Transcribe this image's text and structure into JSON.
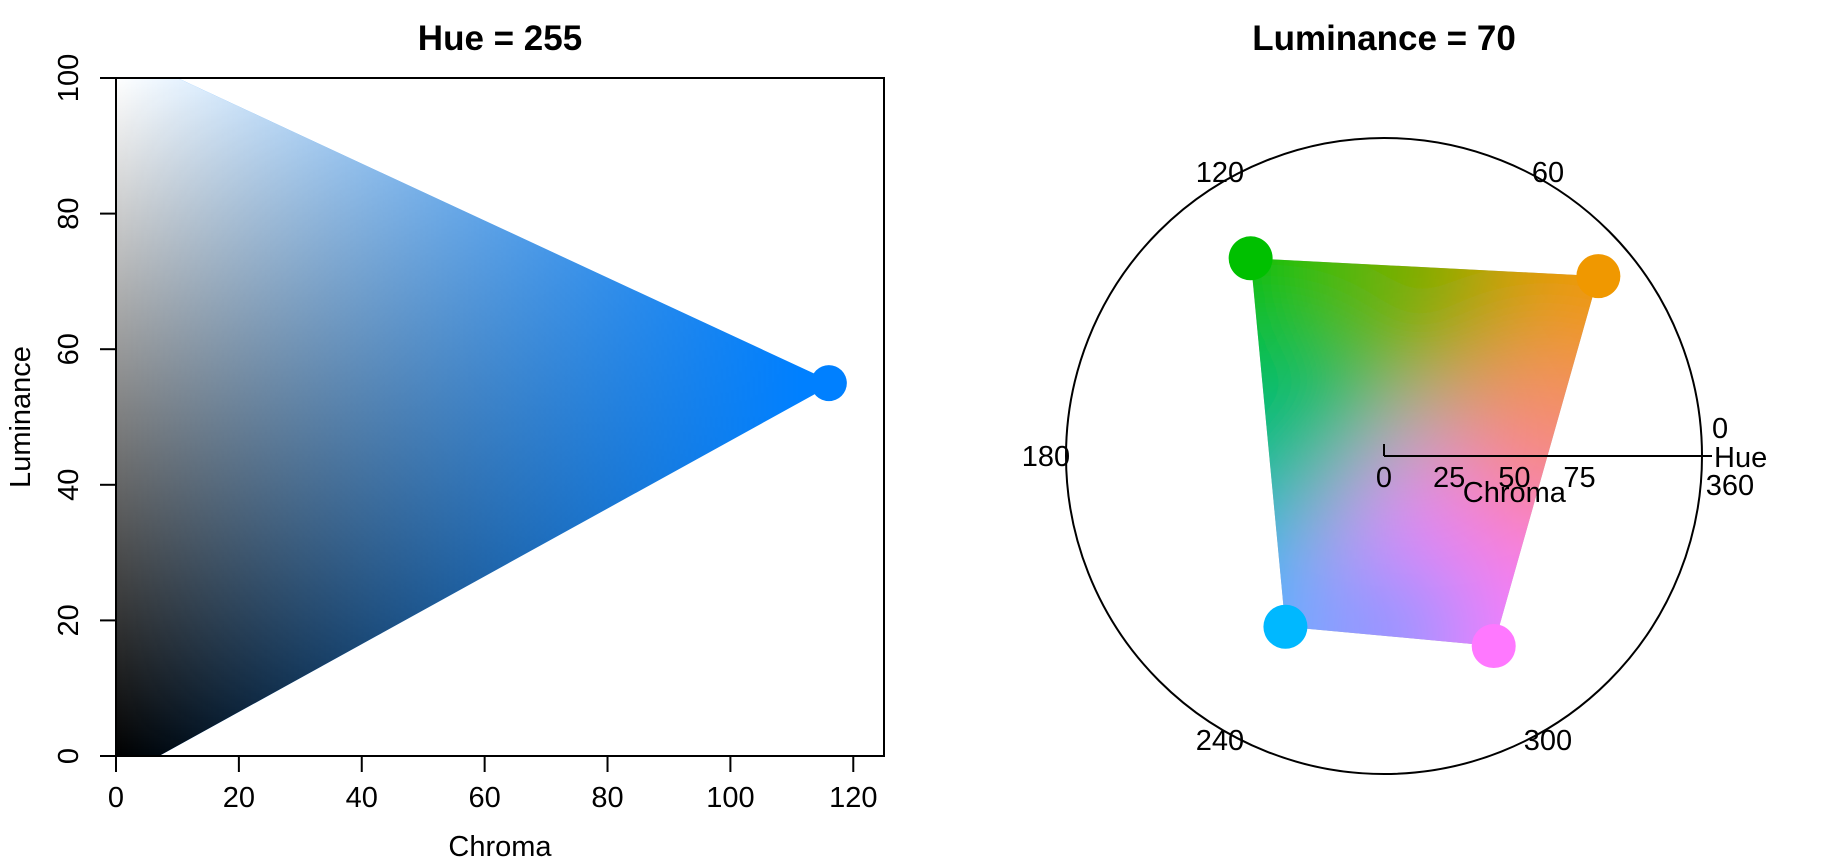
{
  "chart_data": [
    {
      "type": "scatter",
      "title": "Hue = 255",
      "xlabel": "Chroma",
      "ylabel": "Luminance",
      "fixed_hue": 255,
      "xlim": [
        0,
        125
      ],
      "ylim": [
        0,
        100
      ],
      "x_ticks": [
        0,
        20,
        40,
        60,
        80,
        100,
        120
      ],
      "y_ticks": [
        0,
        20,
        40,
        60,
        80,
        100
      ],
      "gamut_boundary": [
        {
          "chroma": 0,
          "luminance": 0
        },
        {
          "chroma": 7,
          "luminance": 0
        },
        {
          "chroma": 117,
          "luminance": 55
        },
        {
          "chroma": 10,
          "luminance": 100
        },
        {
          "chroma": 0,
          "luminance": 100
        }
      ],
      "apex": {
        "chroma": 117,
        "luminance": 55,
        "color": "#0080FF"
      },
      "grid": false
    },
    {
      "type": "scatter",
      "title": "Luminance = 70",
      "fixed_luminance": 70,
      "coordinate_system": "polar",
      "angle_label": "Hue",
      "radius_label": "Chroma",
      "hue_ticks": [
        0,
        60,
        120,
        180,
        240,
        300,
        360
      ],
      "chroma_ticks": [
        0,
        25,
        50,
        75
      ],
      "chroma_max": 100,
      "gamut_corners": [
        {
          "hue": 40,
          "chroma": 88,
          "color": "#F09800"
        },
        {
          "hue": 124,
          "chroma": 75,
          "color": "#00C000"
        },
        {
          "hue": 240,
          "chroma": 62,
          "color": "#00B8FF"
        },
        {
          "hue": 300,
          "chroma": 69,
          "color": "#FF78FF"
        }
      ],
      "center_color": "#ACACAC"
    }
  ]
}
